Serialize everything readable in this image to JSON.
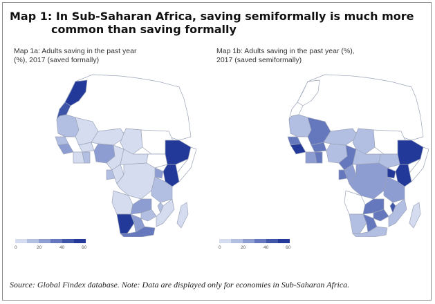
{
  "title_line1": "Map 1: In Sub-Saharan Africa, saving semiformally is much more",
  "title_line2": "common than saving formally",
  "map_a": {
    "subtitle_line1": "Map 1a: Adults saving in the past year",
    "subtitle_line2": "(%), 2017 (saved formally)",
    "legend_ticks": [
      "0",
      "20",
      "40",
      "60"
    ]
  },
  "map_b": {
    "subtitle_line1": "Map 1b: Adults saving in the past year (%),",
    "subtitle_line2": "2017 (saved semiformally)",
    "legend_ticks": [
      "0",
      "20",
      "40",
      "60"
    ]
  },
  "legend_colors": [
    "#d5dcef",
    "#b3bfe2",
    "#8d9cd1",
    "#6678bd",
    "#3f55a8",
    "#22399a"
  ],
  "no_data_color": "#ffffff",
  "source": "Source: Global Findex database. Note: Data are displayed only for economies in Sub-Saharan Africa."
}
